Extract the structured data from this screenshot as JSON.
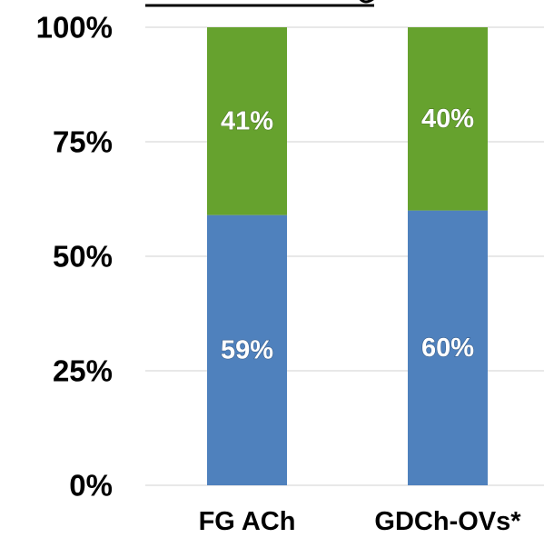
{
  "chart_data": {
    "type": "bar",
    "stacked": true,
    "categories": [
      "FG ACh",
      "GDCh-OVs*"
    ],
    "series": [
      {
        "values": [
          59,
          60
        ],
        "labels": [
          "59%",
          "60%"
        ],
        "color": "#4f81bd"
      },
      {
        "values": [
          41,
          40
        ],
        "labels": [
          "41%",
          "40%"
        ],
        "color": "#66a22e"
      }
    ],
    "yticks": [
      "0%",
      "25%",
      "50%",
      "75%",
      "100%"
    ],
    "ylim": [
      0,
      100
    ],
    "grid": true
  }
}
